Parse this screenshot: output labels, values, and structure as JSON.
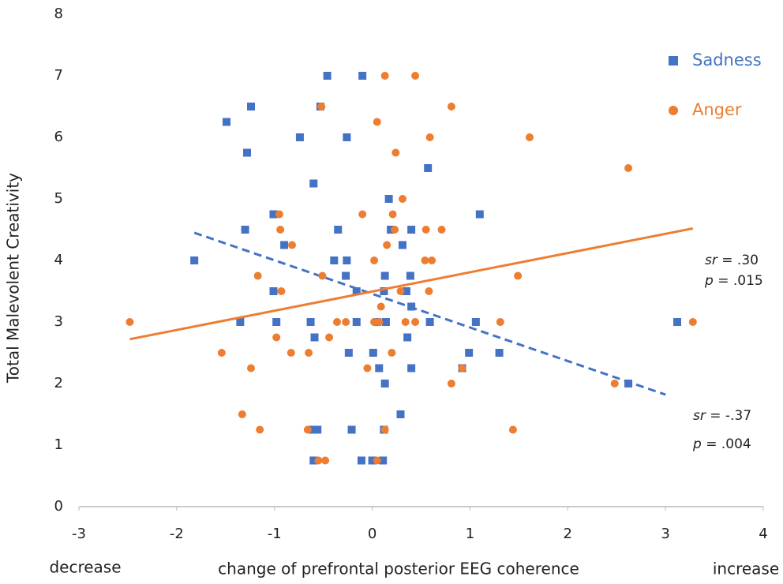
{
  "chart_data": {
    "type": "scatter",
    "x_label": "change of prefrontal posterior EEG coherence",
    "y_label": "Total Malevolent Creativity",
    "x_left_note": "decrease",
    "x_right_note": "increase",
    "xlim": [
      -3,
      4
    ],
    "xticks": [
      -3,
      -2,
      -1,
      0,
      1,
      2,
      3,
      4
    ],
    "ylim": [
      0,
      8
    ],
    "yticks": [
      0,
      1,
      2,
      3,
      4,
      5,
      6,
      7,
      8
    ],
    "series": [
      {
        "name": "Sadness",
        "color": "#4472c4",
        "marker": "square",
        "trend_style": "dashed",
        "x": [
          -1.82,
          -1.49,
          -1.24,
          -1.28,
          -1.3,
          -1.35,
          -1.01,
          -1.01,
          -0.98,
          -0.9,
          -0.74,
          -0.63,
          -0.6,
          -0.59,
          -0.61,
          -0.56,
          -0.6,
          -0.53,
          -0.46,
          -0.39,
          -0.35,
          -0.26,
          -0.26,
          -0.27,
          -0.24,
          -0.21,
          -0.16,
          -0.16,
          -0.1,
          -0.11,
          0.0,
          0.01,
          0.05,
          0.07,
          0.11,
          0.13,
          0.12,
          0.13,
          0.14,
          0.12,
          0.17,
          0.19,
          0.4,
          0.31,
          0.29,
          0.35,
          0.36,
          0.39,
          0.4,
          0.4,
          0.57,
          0.59,
          0.99,
          1.06,
          1.1,
          0.92,
          1.3,
          2.62,
          3.12
        ],
        "y": [
          4.0,
          6.25,
          6.5,
          5.75,
          4.5,
          3.0,
          4.75,
          3.5,
          3.0,
          4.25,
          6.0,
          3.0,
          5.25,
          2.75,
          1.25,
          1.25,
          0.75,
          6.5,
          7.0,
          4.0,
          4.5,
          4.0,
          6.0,
          3.75,
          2.5,
          1.25,
          3.5,
          3.0,
          7.0,
          0.75,
          0.75,
          2.5,
          3.0,
          2.25,
          0.75,
          3.75,
          3.5,
          2.0,
          3.0,
          1.25,
          5.0,
          4.5,
          3.25,
          4.25,
          1.5,
          3.5,
          2.75,
          3.75,
          4.5,
          2.25,
          5.5,
          3.0,
          2.5,
          3.0,
          4.75,
          2.25,
          2.5,
          2.0,
          3.0
        ],
        "trend": {
          "x": [
            -1.82,
            3.0
          ],
          "y": [
            4.45,
            1.82
          ]
        }
      },
      {
        "name": "Anger",
        "color": "#ed7d31",
        "marker": "circle",
        "trend_style": "solid",
        "x": [
          -2.48,
          -1.54,
          -1.24,
          -1.33,
          -1.17,
          -1.15,
          -0.98,
          -0.95,
          -0.94,
          -0.93,
          -0.82,
          -0.83,
          -0.66,
          -0.65,
          -0.55,
          -0.52,
          -0.51,
          -0.48,
          -0.44,
          -0.36,
          -0.27,
          -0.1,
          -0.05,
          0.02,
          0.02,
          0.05,
          0.05,
          0.07,
          0.09,
          0.13,
          0.13,
          0.15,
          0.21,
          0.2,
          0.23,
          0.24,
          0.29,
          0.31,
          0.34,
          0.44,
          0.44,
          0.54,
          0.55,
          0.58,
          0.59,
          0.61,
          0.71,
          0.81,
          0.81,
          0.92,
          1.31,
          1.44,
          1.49,
          1.61,
          2.48,
          2.62,
          3.28
        ],
        "y": [
          3.0,
          2.5,
          2.25,
          1.5,
          3.75,
          1.25,
          2.75,
          4.75,
          4.5,
          3.5,
          4.25,
          2.5,
          1.25,
          2.5,
          0.75,
          6.5,
          3.75,
          0.75,
          2.75,
          3.0,
          3.0,
          4.75,
          2.25,
          4.0,
          3.0,
          6.25,
          0.75,
          3.0,
          3.25,
          7.0,
          1.25,
          4.25,
          4.75,
          2.5,
          4.5,
          5.75,
          3.5,
          5.0,
          3.0,
          7.0,
          3.0,
          4.0,
          4.5,
          3.5,
          6.0,
          4.0,
          4.5,
          6.5,
          2.0,
          2.25,
          3.0,
          1.25,
          3.75,
          6.0,
          2.0,
          5.5,
          3.0
        ],
        "trend": {
          "x": [
            -2.48,
            3.28
          ],
          "y": [
            2.72,
            4.52
          ]
        }
      }
    ],
    "annotations": [
      {
        "italic": "sr",
        "rest": " = .30"
      },
      {
        "italic": "p",
        "rest": " = .015"
      },
      {
        "italic": "sr",
        "rest": " = -.37"
      },
      {
        "italic": "p",
        "rest": " = .004"
      }
    ]
  }
}
